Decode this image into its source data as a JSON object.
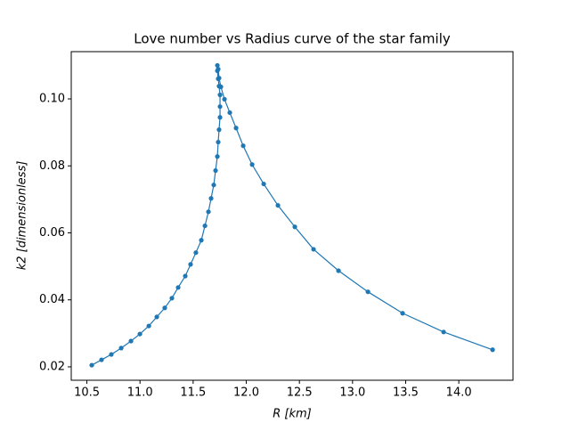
{
  "chart_data": {
    "type": "line",
    "title": "Love number vs Radius curve of the star family",
    "xlabel": "R [km]",
    "ylabel": "k2 [dimensionless]",
    "x": [
      10.546,
      10.638,
      10.73,
      10.823,
      10.915,
      10.999,
      11.083,
      11.158,
      11.233,
      11.3,
      11.359,
      11.426,
      11.476,
      11.526,
      11.577,
      11.611,
      11.644,
      11.669,
      11.694,
      11.711,
      11.728,
      11.736,
      11.744,
      11.753,
      11.753,
      11.753,
      11.744,
      11.736,
      11.728,
      11.728,
      11.736,
      11.744,
      11.761,
      11.795,
      11.845,
      11.904,
      11.971,
      12.055,
      12.164,
      12.298,
      12.457,
      12.633,
      12.868,
      13.145,
      13.471,
      13.857,
      14.318
    ],
    "series": [
      {
        "name": "k2",
        "color": "#1f77b4",
        "values": [
          0.0205,
          0.0221,
          0.0237,
          0.0256,
          0.0277,
          0.0298,
          0.0322,
          0.0349,
          0.0376,
          0.0405,
          0.0437,
          0.0471,
          0.0506,
          0.0541,
          0.0578,
          0.0621,
          0.0663,
          0.0703,
          0.0743,
          0.0786,
          0.0828,
          0.0871,
          0.0908,
          0.0945,
          0.0977,
          0.1012,
          0.1038,
          0.106,
          0.1084,
          0.11,
          0.1089,
          0.1062,
          0.1036,
          0.0999,
          0.0959,
          0.0913,
          0.086,
          0.0804,
          0.0746,
          0.0682,
          0.0618,
          0.0551,
          0.0487,
          0.0424,
          0.036,
          0.0304,
          0.0251
        ]
      }
    ],
    "xlim": [
      10.353,
      14.51
    ],
    "ylim": [
      0.016,
      0.1141
    ],
    "xticks": [
      10.5,
      {
        "value": 11,
        "label": "11.0"
      },
      11.5,
      {
        "value": 12,
        "label": "12.0"
      },
      12.5,
      {
        "value": 13,
        "label": "13.0"
      },
      13.5,
      {
        "value": 14,
        "label": "14.0"
      }
    ],
    "yticks": [
      0.02,
      0.04,
      0.06,
      0.08,
      {
        "value": 0.1,
        "label": "0.10"
      }
    ],
    "grid": false
  }
}
